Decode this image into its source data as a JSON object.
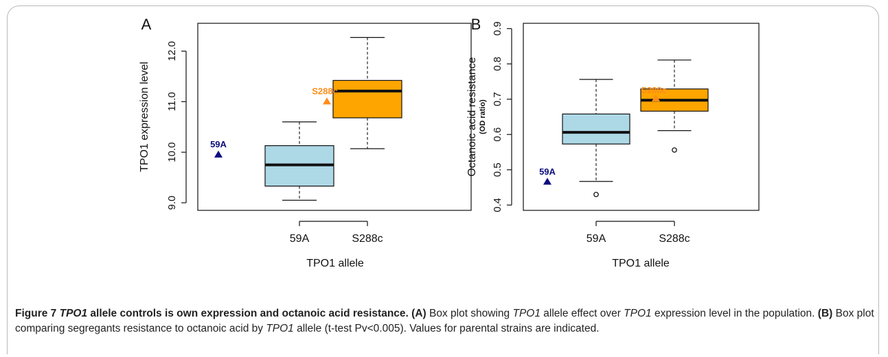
{
  "charts": [
    {
      "panel_label": "A",
      "chart_data": {
        "type": "box",
        "categories": [
          "59A",
          "S288c"
        ],
        "xlabel": "TPO1 allele",
        "ylabel": "TPO1 expression level",
        "ylabel_sub": "",
        "ylim": [
          8.85,
          12.55
        ],
        "yticks": [
          "9.0",
          "10.0",
          "11.0",
          "12.0"
        ],
        "ytick_values": [
          9.0,
          10.0,
          11.0,
          12.0
        ],
        "boxes": [
          {
            "category": "59A",
            "whisker_low": 9.05,
            "q1": 9.33,
            "median": 9.75,
            "q3": 10.13,
            "whisker_high": 10.6,
            "outliers": [],
            "color": "#add8e6"
          },
          {
            "category": "S288c",
            "whisker_low": 10.07,
            "q1": 10.68,
            "median": 11.21,
            "q3": 11.42,
            "whisker_high": 12.27,
            "outliers": [],
            "color": "#ffa500"
          }
        ],
        "parental_points": [
          {
            "label": "59A",
            "y": 9.96,
            "color": "#0c0c7e"
          },
          {
            "label": "S288c",
            "y": 11.01,
            "color": "#ff8c1a"
          }
        ]
      }
    },
    {
      "panel_label": "B",
      "chart_data": {
        "type": "box",
        "categories": [
          "59A",
          "S288c"
        ],
        "xlabel": "TPO1 allele",
        "ylabel": "Octanoic acid resistance",
        "ylabel_sub": "(OD ratio)",
        "ylim": [
          0.385,
          0.915
        ],
        "yticks": [
          "0.4",
          "0.5",
          "0.6",
          "0.7",
          "0.8",
          "0.9"
        ],
        "ytick_values": [
          0.4,
          0.5,
          0.6,
          0.7,
          0.8,
          0.9
        ],
        "boxes": [
          {
            "category": "59A",
            "whisker_low": 0.467,
            "q1": 0.573,
            "median": 0.606,
            "q3": 0.658,
            "whisker_high": 0.756,
            "outliers": [
              0.43
            ],
            "color": "#add8e6"
          },
          {
            "category": "S288c",
            "whisker_low": 0.611,
            "q1": 0.666,
            "median": 0.697,
            "q3": 0.729,
            "whisker_high": 0.811,
            "outliers": [
              0.556
            ],
            "color": "#ffa500"
          }
        ],
        "parental_points": [
          {
            "label": "59A",
            "y": 0.467,
            "color": "#0c0c7e"
          },
          {
            "label": "S288c",
            "y": 0.703,
            "color": "#ff8c1a"
          }
        ]
      }
    }
  ],
  "caption": {
    "fig_label": "Figure 7",
    "title_gene": "TPO1",
    "title_rest": " allele controls is own expression and octanoic acid resistance.",
    "a_label": "(A)",
    "a_text_1": " Box plot showing ",
    "a_gene_1": "TPO1",
    "a_text_2": " allele effect over ",
    "a_gene_2": "TPO1",
    "a_text_3": " expression level in the population. ",
    "b_label": "(B)",
    "b_text_1": " Box plot comparing segregants resistance to octanoic acid by ",
    "b_gene": "TPO1",
    "b_text_2": " allele (t-test Pv<0.005). Values for parental strains are indicated."
  }
}
